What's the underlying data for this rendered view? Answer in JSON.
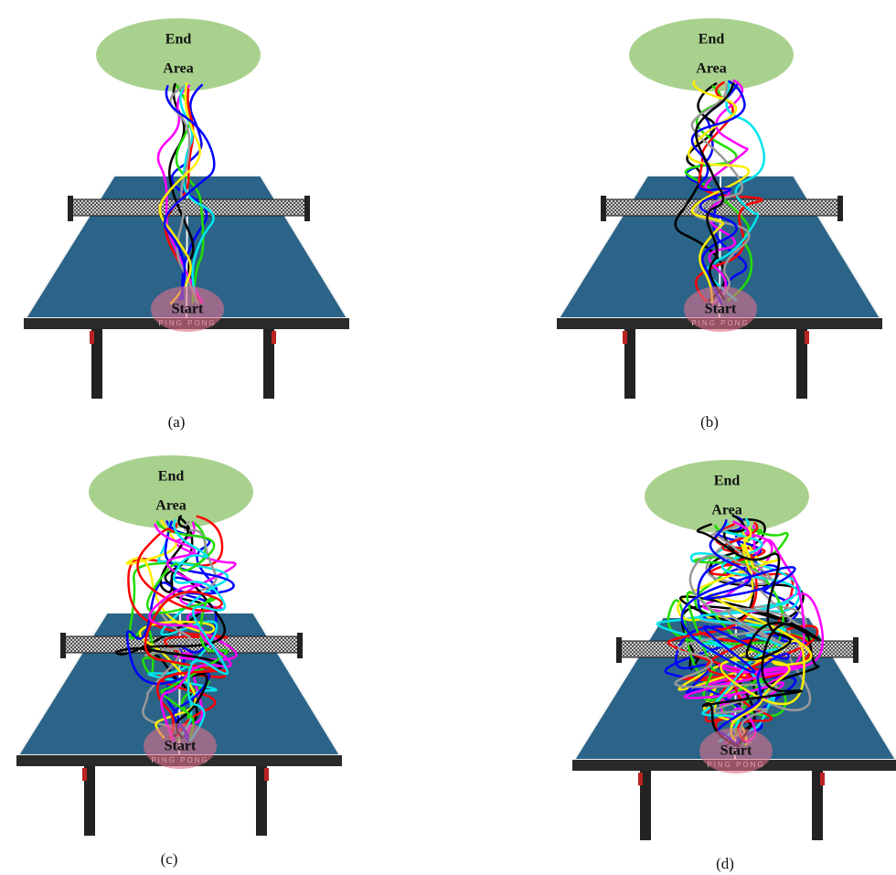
{
  "panels": [
    {
      "caption": "(a)",
      "end_label": [
        "End",
        "Area"
      ],
      "start_label": "Start",
      "table_text": "PING PONG"
    },
    {
      "caption": "(b)",
      "end_label": [
        "End",
        "Area"
      ],
      "start_label": "Start",
      "table_text": "PING PONG"
    },
    {
      "caption": "(c)",
      "end_label": [
        "End",
        "Area"
      ],
      "start_label": "Start",
      "table_text": "PING PONG"
    },
    {
      "caption": "(d)",
      "end_label": [
        "End",
        "Area"
      ],
      "start_label": "Start",
      "table_text": "PING PONG"
    }
  ]
}
